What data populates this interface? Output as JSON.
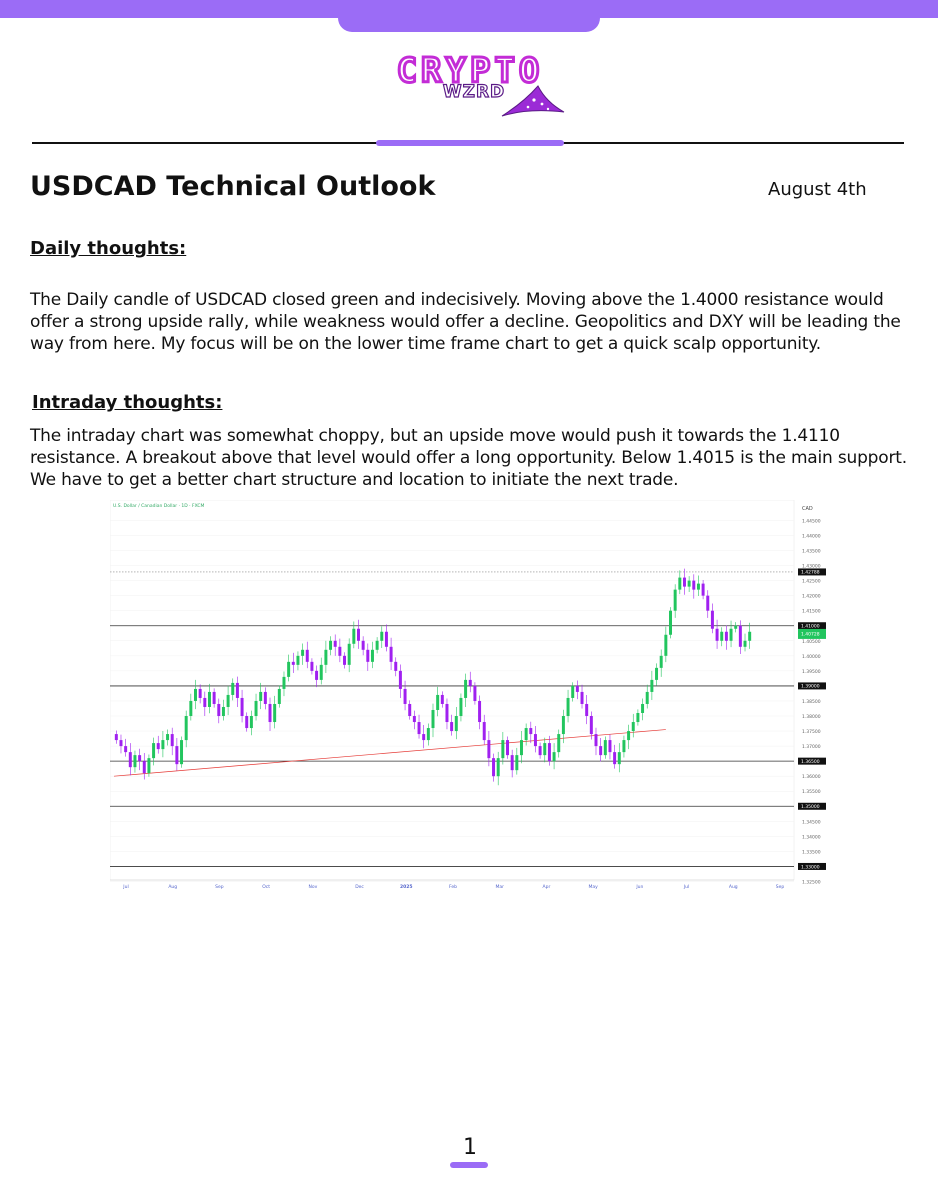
{
  "brand": {
    "logo_main": "CRYPTO",
    "logo_sub": "WZRD",
    "accent_color": "#9b6cf6",
    "logo_color": "#c32cd6"
  },
  "header": {
    "title": "USDCAD Technical Outlook",
    "date": "August 4th"
  },
  "sections": {
    "daily": {
      "heading": "Daily thoughts:",
      "body": "The Daily candle of USDCAD closed green and indecisively. Moving above the 1.4000 resistance would offer a strong upside rally, while weakness would offer a decline. Geopolitics and DXY will be leading the way from here. My focus will be on the lower time frame chart to get a quick scalp opportunity."
    },
    "intraday": {
      "heading": "Intraday thoughts:",
      "body": "The intraday chart was somewhat choppy, but an upside move would push it towards the 1.4110 resistance. A breakout above that level would offer a long opportunity. Below 1.4015 is the main support. We have to get a better chart structure and location to initiate the next trade."
    }
  },
  "chart_data": {
    "type": "candlestick",
    "title": "U.S. Dollar / Canadian Dollar · 1D · FXCM",
    "currency_label": "CAD",
    "months": [
      "Jul",
      "Aug",
      "Sep",
      "Oct",
      "Nov",
      "Dec",
      "2025",
      "Feb",
      "Mar",
      "Apr",
      "May",
      "Jun",
      "Jul",
      "Aug",
      "Sep"
    ],
    "y_ticks": [
      "1.44500",
      "1.44000",
      "1.43500",
      "1.43000",
      "1.42500",
      "1.42000",
      "1.41500",
      "1.41000",
      "1.40500",
      "1.40000",
      "1.39500",
      "1.39000",
      "1.38500",
      "1.38000",
      "1.37500",
      "1.37000",
      "1.36500",
      "1.36000",
      "1.35500",
      "1.35000",
      "1.34500",
      "1.34000",
      "1.33500",
      "1.33000",
      "1.32500"
    ],
    "ylim": [
      1.3255,
      1.4478
    ],
    "horizontal_levels": [
      {
        "value": 1.42788,
        "label": "1.42788",
        "style": "dotted"
      },
      {
        "value": 1.41,
        "label": "1.41000",
        "style": "solid"
      },
      {
        "value": 1.39,
        "label": "1.39000",
        "style": "solid"
      },
      {
        "value": 1.365,
        "label": "1.36500",
        "style": "solid"
      },
      {
        "value": 1.35,
        "label": "1.35000",
        "style": "solid"
      },
      {
        "value": 1.33,
        "label": "1.33000",
        "style": "solid"
      }
    ],
    "price_tag": {
      "value": 1.40728,
      "label": "1.40728",
      "color": "#22c55e"
    },
    "trendline": {
      "from": [
        0,
        1.36
      ],
      "to": [
        118,
        1.3755
      ],
      "color": "#e53935"
    },
    "bull_color": "#22c55e",
    "bear_color": "#a020f0",
    "closes": [
      1.372,
      1.37,
      1.368,
      1.363,
      1.367,
      1.365,
      1.361,
      1.366,
      1.371,
      1.369,
      1.372,
      1.374,
      1.37,
      1.364,
      1.372,
      1.38,
      1.385,
      1.389,
      1.386,
      1.383,
      1.388,
      1.384,
      1.38,
      1.383,
      1.387,
      1.391,
      1.386,
      1.38,
      1.376,
      1.38,
      1.385,
      1.388,
      1.384,
      1.378,
      1.384,
      1.389,
      1.393,
      1.398,
      1.397,
      1.4,
      1.402,
      1.398,
      1.395,
      1.392,
      1.397,
      1.402,
      1.405,
      1.403,
      1.4,
      1.397,
      1.404,
      1.409,
      1.405,
      1.402,
      1.398,
      1.402,
      1.405,
      1.408,
      1.403,
      1.398,
      1.395,
      1.389,
      1.384,
      1.38,
      1.378,
      1.374,
      1.372,
      1.376,
      1.382,
      1.387,
      1.384,
      1.378,
      1.375,
      1.38,
      1.386,
      1.392,
      1.39,
      1.385,
      1.378,
      1.372,
      1.366,
      1.36,
      1.366,
      1.372,
      1.367,
      1.362,
      1.367,
      1.372,
      1.376,
      1.374,
      1.37,
      1.367,
      1.371,
      1.365,
      1.368,
      1.374,
      1.38,
      1.386,
      1.39,
      1.388,
      1.384,
      1.38,
      1.374,
      1.37,
      1.367,
      1.372,
      1.368,
      1.364,
      1.368,
      1.372,
      1.375,
      1.378,
      1.381,
      1.384,
      1.388,
      1.392,
      1.396,
      1.4,
      1.407,
      1.415,
      1.422,
      1.426,
      1.423,
      1.425,
      1.422,
      1.424,
      1.42,
      1.415,
      1.409,
      1.405,
      1.408,
      1.405,
      1.409,
      1.41,
      1.403,
      1.405,
      1.408
    ]
  },
  "footer": {
    "page_number": "1"
  }
}
